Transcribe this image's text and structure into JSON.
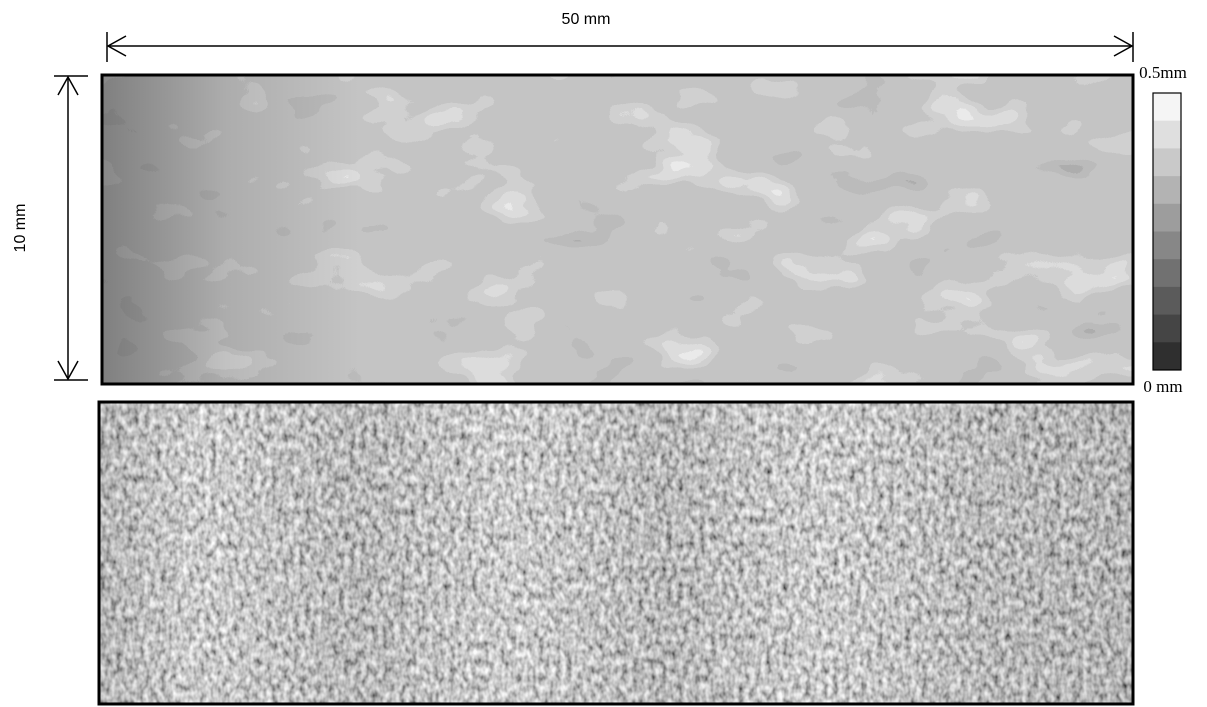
{
  "figure": {
    "width_label": "50 mm",
    "height_label": "10 mm",
    "scale_max": "0.5mm",
    "scale_min": "0 mm"
  }
}
